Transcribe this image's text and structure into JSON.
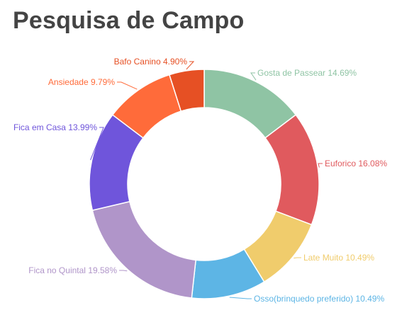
{
  "header": {
    "title": "Pesquisa de Campo"
  },
  "chart_data": {
    "type": "pie",
    "donut": true,
    "title": "Pesquisa de Campo",
    "slices": [
      {
        "label": "Gosta de Passear",
        "value": 14.69,
        "display": "Gosta de Passear 14.69%",
        "color": "#8fc4a4"
      },
      {
        "label": "Euforico",
        "value": 16.08,
        "display": "Euforico 16.08%",
        "color": "#e05a5e"
      },
      {
        "label": "Late Muito",
        "value": 10.49,
        "display": "Late Muito 10.49%",
        "color": "#f0cc6c"
      },
      {
        "label": "Osso(brinquedo preferido)",
        "value": 10.49,
        "display": "Osso(brinquedo preferido) 10.49%",
        "color": "#5db5e5"
      },
      {
        "label": "Fica no Quintal",
        "value": 19.58,
        "display": "Fica no Quintal 19.58%",
        "color": "#b095c9"
      },
      {
        "label": "Fica em Casa",
        "value": 13.99,
        "display": "Fica em Casa 13.99%",
        "color": "#6f55db"
      },
      {
        "label": "Ansiedade",
        "value": 9.79,
        "display": "Ansiedade 9.79%",
        "color": "#ff6b3a"
      },
      {
        "label": "Bafo Canino",
        "value": 4.9,
        "display": "Bafo Canino 4.90%",
        "color": "#e65024"
      }
    ]
  }
}
